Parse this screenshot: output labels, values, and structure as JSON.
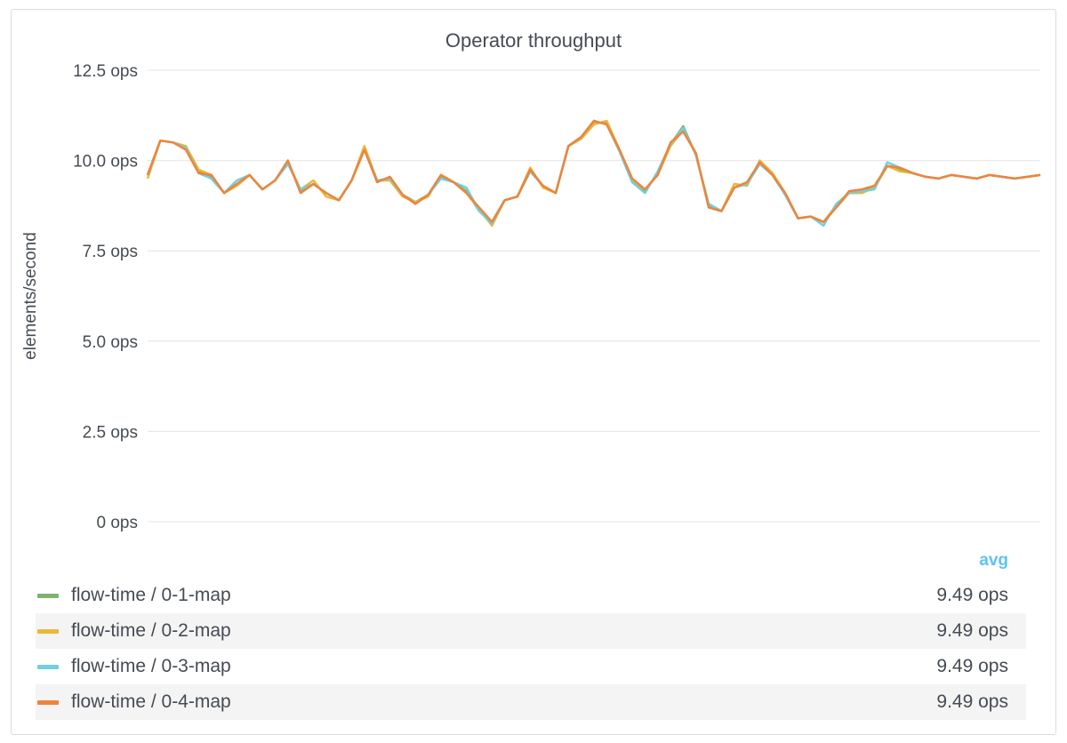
{
  "panel": {
    "title": "Operator throughput",
    "legend_header": "avg"
  },
  "chart_data": {
    "type": "line",
    "title": "Operator throughput",
    "ylabel": "elements/second",
    "xlabel": "",
    "ylim": [
      0,
      12.5
    ],
    "yticks": [
      "0 ops",
      "2.5 ops",
      "5.0 ops",
      "7.5 ops",
      "10.0 ops",
      "12.5 ops"
    ],
    "yticks_values": [
      0,
      2.5,
      5,
      7.5,
      10,
      12.5
    ],
    "grid": true,
    "x": [
      0,
      1,
      2,
      3,
      4,
      5,
      6,
      7,
      8,
      9,
      10,
      11,
      12,
      13,
      14,
      15,
      16,
      17,
      18,
      19,
      20,
      21,
      22,
      23,
      24,
      25,
      26,
      27,
      28,
      29,
      30,
      31,
      32,
      33,
      34,
      35,
      36,
      37,
      38,
      39,
      40,
      41,
      42,
      43,
      44,
      45,
      46,
      47,
      48,
      49,
      50,
      51,
      52,
      53,
      54,
      55,
      56,
      57,
      58,
      59,
      60,
      61,
      62,
      63,
      64,
      65,
      66,
      67,
      68,
      69,
      70
    ],
    "series": [
      {
        "name": "flow-time / 0-1-map",
        "color": "#7eb26d",
        "avg": "9.49 ops",
        "values": [
          9.6,
          10.55,
          10.5,
          10.35,
          9.7,
          9.55,
          9.1,
          9.35,
          9.6,
          9.2,
          9.45,
          9.95,
          9.15,
          9.35,
          9.1,
          8.9,
          9.45,
          10.35,
          9.45,
          9.5,
          9.05,
          8.85,
          9.05,
          9.55,
          9.4,
          9.15,
          8.6,
          8.3,
          8.9,
          9.0,
          9.7,
          9.3,
          9.1,
          10.4,
          10.65,
          11.05,
          11.05,
          10.3,
          9.4,
          9.15,
          9.65,
          10.45,
          10.95,
          10.15,
          8.75,
          8.6,
          9.25,
          9.35,
          9.95,
          9.6,
          9.05,
          8.4,
          8.45,
          8.3,
          8.7,
          9.1,
          9.15,
          9.25,
          9.85,
          9.75,
          9.65,
          9.55,
          9.5,
          9.6,
          9.55,
          9.5,
          9.6,
          9.55,
          9.5,
          9.55,
          9.6
        ]
      },
      {
        "name": "flow-time / 0-2-map",
        "color": "#eab839",
        "avg": "9.49 ops",
        "values": [
          9.5,
          10.55,
          10.5,
          10.4,
          9.75,
          9.6,
          9.1,
          9.3,
          9.6,
          9.2,
          9.45,
          9.95,
          9.2,
          9.45,
          9.0,
          8.9,
          9.45,
          10.4,
          9.45,
          9.45,
          9.0,
          8.85,
          9.0,
          9.6,
          9.4,
          9.1,
          8.65,
          8.2,
          8.9,
          9.0,
          9.8,
          9.25,
          9.1,
          10.4,
          10.6,
          11.0,
          11.1,
          10.3,
          9.45,
          9.2,
          9.6,
          10.4,
          10.85,
          10.2,
          8.7,
          8.6,
          9.35,
          9.3,
          10.0,
          9.65,
          9.1,
          8.4,
          8.45,
          8.3,
          8.75,
          9.1,
          9.1,
          9.25,
          9.85,
          9.7,
          9.65,
          9.55,
          9.5,
          9.6,
          9.55,
          9.5,
          9.6,
          9.55,
          9.5,
          9.55,
          9.6
        ]
      },
      {
        "name": "flow-time / 0-3-map",
        "color": "#6ed0e0",
        "avg": "9.49 ops",
        "values": [
          9.6,
          10.55,
          10.5,
          10.35,
          9.65,
          9.5,
          9.1,
          9.45,
          9.6,
          9.2,
          9.45,
          9.9,
          9.2,
          9.35,
          9.1,
          8.9,
          9.45,
          10.3,
          9.45,
          9.5,
          9.05,
          8.8,
          9.05,
          9.5,
          9.4,
          9.25,
          8.6,
          8.25,
          8.9,
          9.0,
          9.7,
          9.3,
          9.1,
          10.4,
          10.65,
          11.1,
          11.0,
          10.25,
          9.4,
          9.1,
          9.7,
          10.45,
          10.9,
          10.15,
          8.8,
          8.6,
          9.25,
          9.35,
          9.9,
          9.6,
          9.05,
          8.4,
          8.45,
          8.2,
          8.8,
          9.1,
          9.15,
          9.2,
          9.95,
          9.8,
          9.65,
          9.55,
          9.5,
          9.6,
          9.55,
          9.5,
          9.6,
          9.55,
          9.5,
          9.55,
          9.6
        ]
      },
      {
        "name": "flow-time / 0-4-map",
        "color": "#ef843c",
        "avg": "9.49 ops",
        "values": [
          9.6,
          10.55,
          10.5,
          10.3,
          9.65,
          9.6,
          9.1,
          9.35,
          9.6,
          9.2,
          9.45,
          10.0,
          9.1,
          9.35,
          9.1,
          8.9,
          9.45,
          10.3,
          9.4,
          9.55,
          9.05,
          8.8,
          9.05,
          9.6,
          9.4,
          9.1,
          8.7,
          8.3,
          8.9,
          9.0,
          9.75,
          9.3,
          9.1,
          10.4,
          10.65,
          11.1,
          11.0,
          10.3,
          9.5,
          9.2,
          9.6,
          10.5,
          10.8,
          10.2,
          8.7,
          8.6,
          9.25,
          9.4,
          9.95,
          9.6,
          9.1,
          8.4,
          8.45,
          8.3,
          8.7,
          9.15,
          9.2,
          9.3,
          9.85,
          9.8,
          9.65,
          9.55,
          9.5,
          9.6,
          9.55,
          9.5,
          9.6,
          9.55,
          9.5,
          9.55,
          9.6
        ]
      }
    ]
  }
}
